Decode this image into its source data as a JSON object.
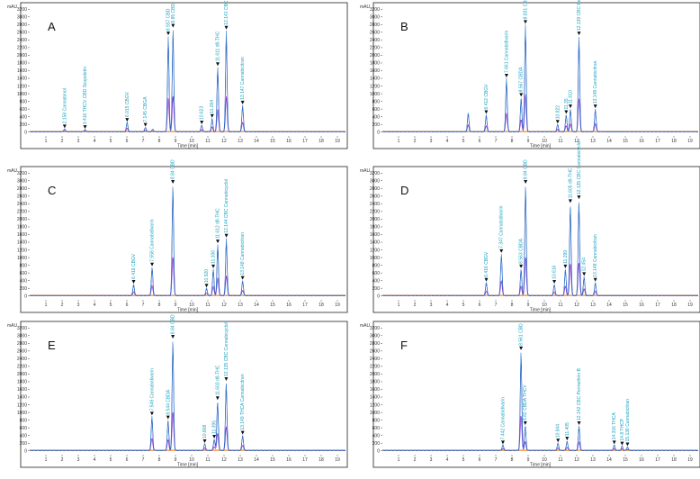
{
  "chart_data": {
    "type": "line",
    "series_colors": {
      "trace1": "#3a7fd0",
      "trace2": "#1f3fae",
      "trace3": "#8a2ed1",
      "baseline": "#f08a24",
      "label": "#1aa3c4"
    },
    "x_ticks": [
      "1",
      "2",
      "3",
      "4",
      "5",
      "6",
      "7",
      "8",
      "9",
      "10",
      "11",
      "12",
      "13",
      "14",
      "15",
      "16",
      "17",
      "18",
      "19"
    ],
    "y_ticks": [
      "0",
      "200",
      "400",
      "600",
      "800",
      "1000",
      "1200",
      "1400",
      "1600",
      "1800",
      "2000",
      "2200",
      "2400",
      "2600",
      "2800",
      "3000",
      "3200"
    ],
    "panels": [
      {
        "letter": "A",
        "xlabel": "Time [min]",
        "ylabel": "mAU",
        "xlim": [
          0,
          19.5
        ],
        "ylim": [
          -100,
          3300
        ],
        "peaks": [
          {
            "t": 2.158,
            "h": 80,
            "label": "2.158 Cannabinol"
          },
          {
            "t": 3.416,
            "h": 60,
            "label": "3.416 THCV CBD Scopoletin"
          },
          {
            "t": 6.015,
            "h": 250,
            "label": "6.015 CBGV"
          },
          {
            "t": 7.145,
            "h": 120,
            "label": "7.145 CBGA"
          },
          {
            "t": 7.6,
            "h": 70,
            "label": ""
          },
          {
            "t": 8.557,
            "h": 2500,
            "label": "8.557 CBD"
          },
          {
            "t": 8.85,
            "h": 2700,
            "label": "8.85 CBD"
          },
          {
            "t": 10.623,
            "h": 180,
            "label": "10.623"
          },
          {
            "t": 11.264,
            "h": 350,
            "label": "11.264"
          },
          {
            "t": 11.611,
            "h": 1700,
            "label": "11.611 d9-THC"
          },
          {
            "t": 12.141,
            "h": 2650,
            "label": "12.141 CBC Permethrin B"
          },
          {
            "t": 13.147,
            "h": 700,
            "label": "13.147 Cannabicitran"
          }
        ]
      },
      {
        "letter": "B",
        "xlabel": "Time [min]",
        "ylabel": "mAU",
        "xlim": [
          0,
          19.5
        ],
        "ylim": [
          -100,
          3300
        ],
        "peaks": [
          {
            "t": 5.3,
            "h": 500,
            "label": ""
          },
          {
            "t": 6.412,
            "h": 450,
            "label": "6.412 CBGV"
          },
          {
            "t": 7.661,
            "h": 1400,
            "label": "7.661 Cannabidivarin"
          },
          {
            "t": 8.567,
            "h": 900,
            "label": "8.567 CBDA"
          },
          {
            "t": 8.831,
            "h": 2800,
            "label": "8.831 CBD"
          },
          {
            "t": 10.822,
            "h": 200,
            "label": "10.822"
          },
          {
            "t": 11.35,
            "h": 450,
            "label": "11.35"
          },
          {
            "t": 11.61,
            "h": 600,
            "label": "11.610"
          },
          {
            "t": 12.139,
            "h": 2500,
            "label": "12.139 CBC Permethrin B"
          },
          {
            "t": 13.148,
            "h": 600,
            "label": "13.148 Cannabicitran"
          }
        ]
      },
      {
        "letter": "C",
        "xlabel": "Time [min]",
        "ylabel": "mAU",
        "xlim": [
          0,
          19.5
        ],
        "ylim": [
          -100,
          3300
        ],
        "peaks": [
          {
            "t": 6.416,
            "h": 300,
            "label": "6.416 CBGV"
          },
          {
            "t": 7.558,
            "h": 750,
            "label": "7.558 Cannabidivarin"
          },
          {
            "t": 8.84,
            "h": 2900,
            "label": "8.84 CBD"
          },
          {
            "t": 10.92,
            "h": 200,
            "label": "10.920"
          },
          {
            "t": 11.336,
            "h": 700,
            "label": "11.336"
          },
          {
            "t": 11.612,
            "h": 1350,
            "label": "11.612 d9-THC"
          },
          {
            "t": 12.144,
            "h": 1500,
            "label": "12.144 CBC Cannabicyclol"
          },
          {
            "t": 13.148,
            "h": 400,
            "label": "13.148 Cannabicitran"
          }
        ]
      },
      {
        "letter": "D",
        "xlabel": "Time [min]",
        "ylabel": "mAU",
        "xlim": [
          0,
          19.5
        ],
        "ylim": [
          -100,
          3300
        ],
        "peaks": [
          {
            "t": 6.416,
            "h": 350,
            "label": "6.416 CBGV"
          },
          {
            "t": 7.347,
            "h": 1100,
            "label": "7.347 Cannabidivarin"
          },
          {
            "t": 8.563,
            "h": 700,
            "label": "8.563 CBDA"
          },
          {
            "t": 8.84,
            "h": 2900,
            "label": "8.84 CBD"
          },
          {
            "t": 10.616,
            "h": 300,
            "label": "10.616"
          },
          {
            "t": 11.299,
            "h": 700,
            "label": "11.299"
          },
          {
            "t": 11.605,
            "h": 2400,
            "label": "11.605 d9-THC"
          },
          {
            "t": 12.135,
            "h": 2500,
            "label": "12.135 CBC Cannabicyclol"
          },
          {
            "t": 12.454,
            "h": 500,
            "label": "12.454"
          },
          {
            "t": 13.148,
            "h": 350,
            "label": "13.148 Cannabicitran"
          }
        ]
      },
      {
        "letter": "E",
        "xlabel": "Time [min]",
        "ylabel": "mAU",
        "xlim": [
          0,
          19.5
        ],
        "ylim": [
          -100,
          3300
        ],
        "peaks": [
          {
            "t": 7.549,
            "h": 900,
            "label": "7.549 Cannabidivarin"
          },
          {
            "t": 8.544,
            "h": 800,
            "label": "8.544 CBDA"
          },
          {
            "t": 8.84,
            "h": 2900,
            "label": "8.84 CBD"
          },
          {
            "t": 10.808,
            "h": 180,
            "label": "10.808"
          },
          {
            "t": 11.395,
            "h": 300,
            "label": "11.395"
          },
          {
            "t": 11.603,
            "h": 1300,
            "label": "11.603 d9-THC"
          },
          {
            "t": 12.135,
            "h": 1800,
            "label": "12.135 CBC Cannabicyclol"
          },
          {
            "t": 13.149,
            "h": 400,
            "label": "13.149 THCA Cannabicitran"
          }
        ]
      },
      {
        "letter": "F",
        "xlabel": "Time [min]",
        "ylabel": "mAU",
        "xlim": [
          0,
          19.5
        ],
        "ylim": [
          -100,
          3300
        ],
        "peaks": [
          {
            "t": 7.442,
            "h": 150,
            "label": "7.442 Cannabidivarin"
          },
          {
            "t": 8.561,
            "h": 2600,
            "label": "8.561 CBD"
          },
          {
            "t": 8.82,
            "h": 650,
            "label": "8.82 CBDA THCV"
          },
          {
            "t": 10.844,
            "h": 200,
            "label": "10.844"
          },
          {
            "t": 11.405,
            "h": 250,
            "label": "11.405"
          },
          {
            "t": 12.142,
            "h": 650,
            "label": "12.142 CBC Permethrin B"
          },
          {
            "t": 14.316,
            "h": 150,
            "label": "14.316 THCA"
          },
          {
            "t": 14.8,
            "h": 120,
            "label": "14.8 THCP"
          },
          {
            "t": 15.136,
            "h": 100,
            "label": "15.136 Cannabicitran"
          }
        ]
      }
    ]
  }
}
